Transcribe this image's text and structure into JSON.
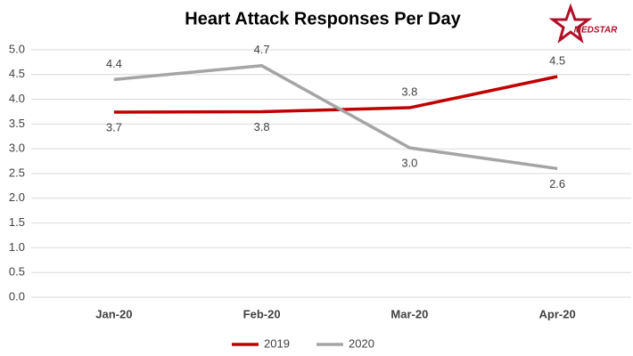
{
  "chart_data": {
    "type": "line",
    "title": "Heart Attack Responses Per Day",
    "logo": "MEDSTAR",
    "categories": [
      "Jan-20",
      "Feb-20",
      "Mar-20",
      "Apr-20"
    ],
    "series": [
      {
        "name": "2019",
        "color": "#c00000",
        "values": [
          3.74,
          3.75,
          3.83,
          4.46
        ],
        "value_labels": [
          "3.7",
          "3.8",
          "3.8",
          "4.5"
        ]
      },
      {
        "name": "2020",
        "color": "#a5a5a5",
        "values": [
          4.4,
          4.68,
          3.02,
          2.6
        ],
        "value_labels": [
          "4.4",
          "4.7",
          "3.0",
          "2.6"
        ]
      }
    ],
    "ylim": [
      0,
      5
    ],
    "yticks": [
      {
        "value": 0,
        "label": "0.0"
      },
      0.5,
      {
        "value": 1,
        "label": "1.0"
      },
      1.5,
      {
        "value": 2,
        "label": "2.0"
      },
      2.5,
      {
        "value": 3,
        "label": "3.0"
      },
      3.5,
      {
        "value": 4,
        "label": "4.0"
      },
      4.5,
      {
        "value": 5,
        "label": "5.0"
      }
    ],
    "grid": true,
    "legend": "bottom"
  }
}
